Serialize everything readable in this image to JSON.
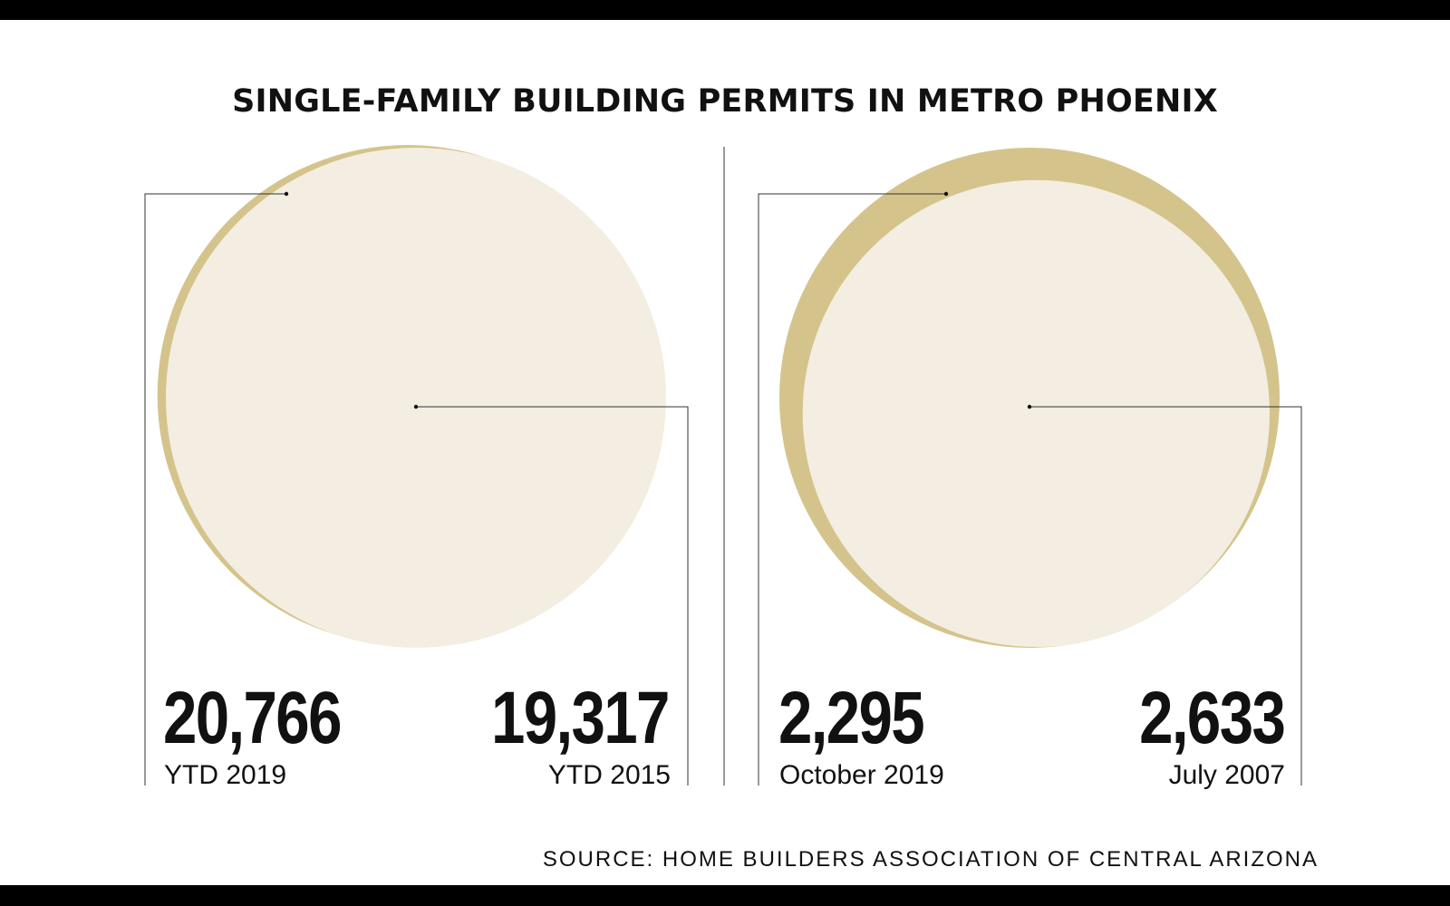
{
  "title": "SINGLE-FAMILY BUILDING PERMITS IN METRO PHOENIX",
  "source": "SOURCE: HOME BUILDERS ASSOCIATION OF CENTRAL ARIZONA",
  "colors": {
    "inner_circle": "#f3eee1",
    "outer_circle": "#d4c48c",
    "text": "#111111",
    "leader_line": "#333333"
  },
  "chart_data": [
    {
      "type": "proportional-area",
      "title": "",
      "series": [
        {
          "name": "YTD 2019",
          "value": 20766,
          "display": "20,766",
          "role": "inner"
        },
        {
          "name": "YTD 2015",
          "value": 19317,
          "display": "19,317",
          "role": "outer"
        }
      ]
    },
    {
      "type": "proportional-area",
      "title": "",
      "series": [
        {
          "name": "October 2019",
          "value": 2295,
          "display": "2,295",
          "role": "inner"
        },
        {
          "name": "July 2007",
          "value": 2633,
          "display": "2,633",
          "role": "outer"
        }
      ]
    }
  ]
}
